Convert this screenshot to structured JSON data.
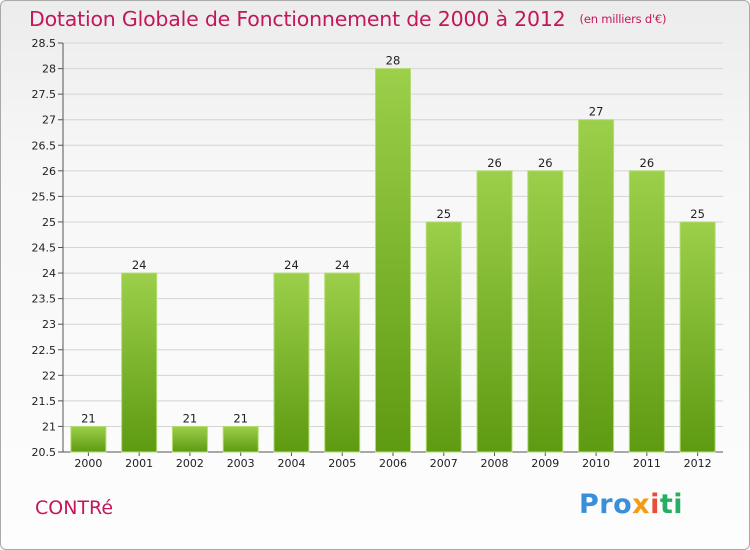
{
  "header": {
    "title": "Dotation Globale de Fonctionnement de 2000 à 2012",
    "subtitle": "(en milliers d'€)"
  },
  "footer": {
    "commune": "CONTRé",
    "logo": {
      "p1": "Pro",
      "p2": "x",
      "p3": "i",
      "p4": "ti"
    }
  },
  "colors": {
    "title": "#c2185b",
    "bar_top": "#9ccf4a",
    "bar_bottom": "#5e9a12",
    "grid": "#d4d4d4"
  },
  "chart_data": {
    "type": "bar",
    "title": "Dotation Globale de Fonctionnement de 2000 à 2012",
    "subtitle": "(en milliers d'€)",
    "categories": [
      "2000",
      "2001",
      "2002",
      "2003",
      "2004",
      "2005",
      "2006",
      "2007",
      "2008",
      "2009",
      "2010",
      "2011",
      "2012"
    ],
    "values": [
      21,
      24,
      21,
      21,
      24,
      24,
      28,
      25,
      26,
      26,
      27,
      26,
      25
    ],
    "ylim": [
      20.5,
      28.5
    ],
    "yticks": [
      "20.5",
      "21",
      "21.5",
      "22",
      "22.5",
      "23",
      "23.5",
      "24",
      "24.5",
      "25",
      "25.5",
      "26",
      "26.5",
      "27",
      "27.5",
      "28",
      "28.5"
    ],
    "xlabel": "",
    "ylabel": "",
    "grid": true,
    "legend": "none"
  }
}
